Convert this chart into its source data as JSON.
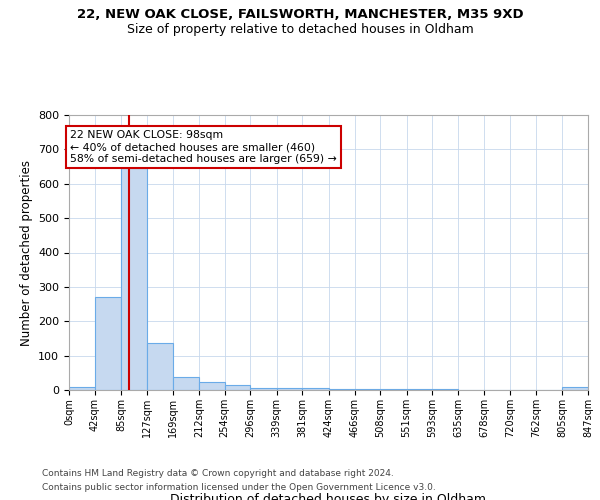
{
  "title1": "22, NEW OAK CLOSE, FAILSWORTH, MANCHESTER, M35 9XD",
  "title2": "Size of property relative to detached houses in Oldham",
  "xlabel": "Distribution of detached houses by size in Oldham",
  "ylabel": "Number of detached properties",
  "footnote1": "Contains HM Land Registry data © Crown copyright and database right 2024.",
  "footnote2": "Contains public sector information licensed under the Open Government Licence v3.0.",
  "bin_edges": [
    0,
    42,
    85,
    127,
    169,
    212,
    254,
    296,
    339,
    381,
    424,
    466,
    508,
    551,
    593,
    635,
    678,
    720,
    762,
    805,
    847
  ],
  "bar_heights": [
    8,
    272,
    645,
    138,
    37,
    22,
    15,
    5,
    5,
    5,
    3,
    3,
    3,
    2,
    2,
    1,
    1,
    1,
    1,
    8
  ],
  "bar_color": "#c6d9f0",
  "bar_edge_color": "#6aabe8",
  "property_size": 98,
  "vline_color": "#cc0000",
  "annotation_text": "22 NEW OAK CLOSE: 98sqm\n← 40% of detached houses are smaller (460)\n58% of semi-detached houses are larger (659) →",
  "annotation_box_color": "#ffffff",
  "annotation_box_edge": "#cc0000",
  "ylim": [
    0,
    800
  ],
  "yticks": [
    0,
    100,
    200,
    300,
    400,
    500,
    600,
    700,
    800
  ],
  "bg_color": "#ffffff",
  "grid_color": "#c8d8ec",
  "tick_labels": [
    "0sqm",
    "42sqm",
    "85sqm",
    "127sqm",
    "169sqm",
    "212sqm",
    "254sqm",
    "296sqm",
    "339sqm",
    "381sqm",
    "424sqm",
    "466sqm",
    "508sqm",
    "551sqm",
    "593sqm",
    "635sqm",
    "678sqm",
    "720sqm",
    "762sqm",
    "805sqm",
    "847sqm"
  ]
}
